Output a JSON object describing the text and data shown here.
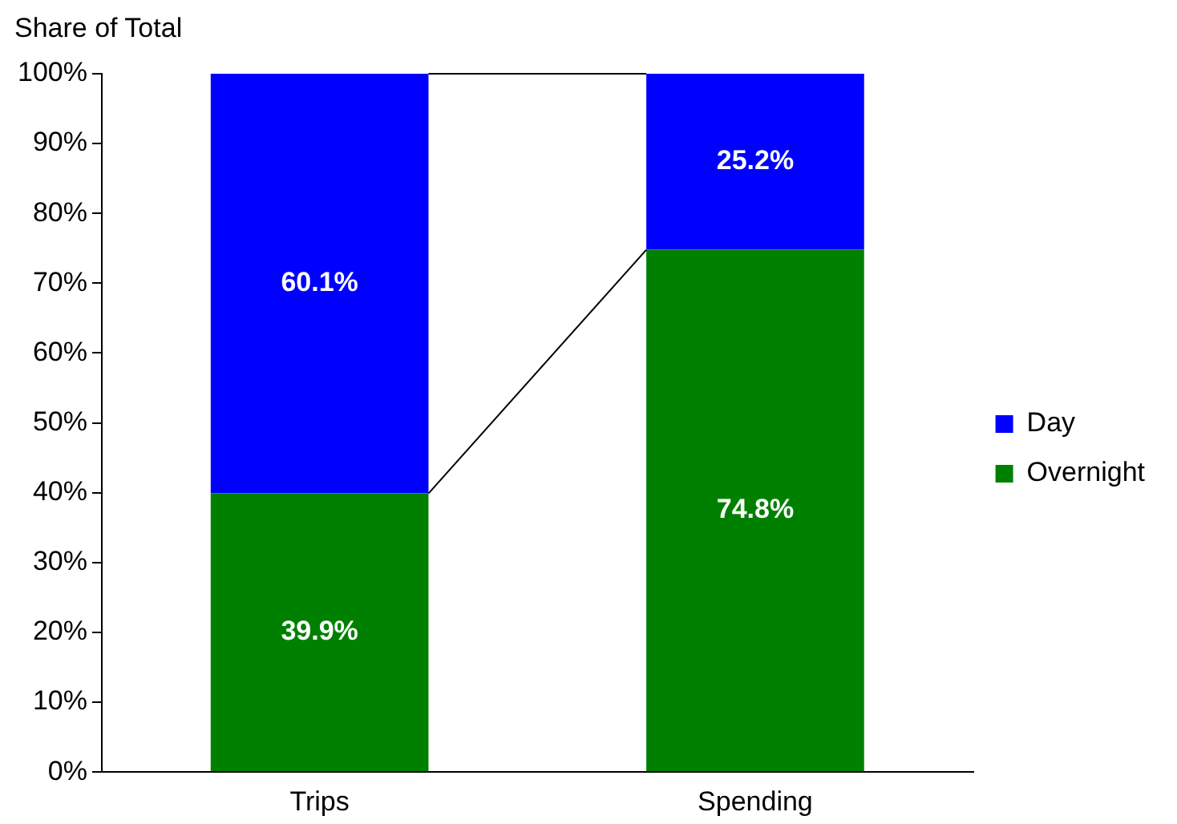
{
  "chart_data": {
    "type": "bar",
    "stacked": true,
    "ylabel": "Share of Total",
    "categories": [
      "Trips",
      "Spending"
    ],
    "series": [
      {
        "name": "Overnight",
        "color": "#008000",
        "values": [
          39.9,
          74.8
        ],
        "value_labels": [
          "39.9%",
          "74.8%"
        ]
      },
      {
        "name": "Day",
        "color": "#0000ff",
        "values": [
          60.1,
          25.2
        ],
        "value_labels": [
          "60.1%",
          "25.2%"
        ]
      }
    ],
    "ylim": [
      0,
      100
    ],
    "yticks": [
      {
        "value": 0,
        "label": "0%"
      },
      {
        "value": 10,
        "label": "10%"
      },
      {
        "value": 20,
        "label": "20%"
      },
      {
        "value": 30,
        "label": "30%"
      },
      {
        "value": 40,
        "label": "40%"
      },
      {
        "value": 50,
        "label": "50%"
      },
      {
        "value": 60,
        "label": "60%"
      },
      {
        "value": 70,
        "label": "70%"
      },
      {
        "value": 80,
        "label": "80%"
      },
      {
        "value": 90,
        "label": "90%"
      },
      {
        "value": 100,
        "label": "100%"
      }
    ],
    "grid": false,
    "legend": "right"
  }
}
